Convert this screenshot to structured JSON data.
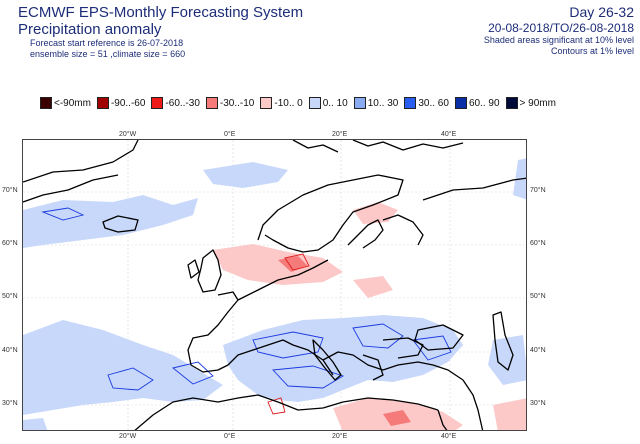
{
  "header": {
    "title": "ECMWF EPS-Monthly Forecasting System",
    "subtitle": "Precipitation anomaly",
    "forecast_line": "Forecast start reference is 26-07-2018",
    "ensemble_line": "ensemble size = 51 ,climate size = 660",
    "day_range": "Day 26-32",
    "date_range": "20-08-2018/TO/26-08-2018",
    "shaded_note": "Shaded areas significant at 10% level",
    "contour_note": "Contours at 1% level"
  },
  "legend": [
    {
      "label": "<-90mm",
      "color": "#3a0000"
    },
    {
      "label": "-90..-60",
      "color": "#a00000"
    },
    {
      "label": "-60..-30",
      "color": "#ee1a1a"
    },
    {
      "label": "-30..-10",
      "color": "#f57a7a"
    },
    {
      "label": "-10..  0",
      "color": "#fcc8c8"
    },
    {
      "label": "0..  10",
      "color": "#c8d8fa"
    },
    {
      "label": "10..  30",
      "color": "#8aaaf2"
    },
    {
      "label": "30..  60",
      "color": "#2a5ef0"
    },
    {
      "label": "60..  90",
      "color": "#0a2ea8"
    },
    {
      "label": ">  90mm",
      "color": "#000a3a"
    }
  ],
  "map": {
    "lon_labels_top": [
      "20°W",
      "0°E",
      "20°E",
      "40°E"
    ],
    "lon_labels_bottom": [
      "20°W",
      "0°E",
      "20°E",
      "40°E"
    ],
    "lat_labels_left": [
      "70°N",
      "60°N",
      "50°N",
      "40°N",
      "30°N"
    ],
    "lat_labels_right": [
      "70°N",
      "60°N",
      "50°N",
      "40°N",
      "30°N"
    ],
    "colors": {
      "positive_light": "#c8d8fa",
      "negative_light": "#fcc8c8",
      "contour_blue": "#1a3ae0",
      "contour_red": "#e01a1a",
      "coast": "#000000"
    }
  }
}
